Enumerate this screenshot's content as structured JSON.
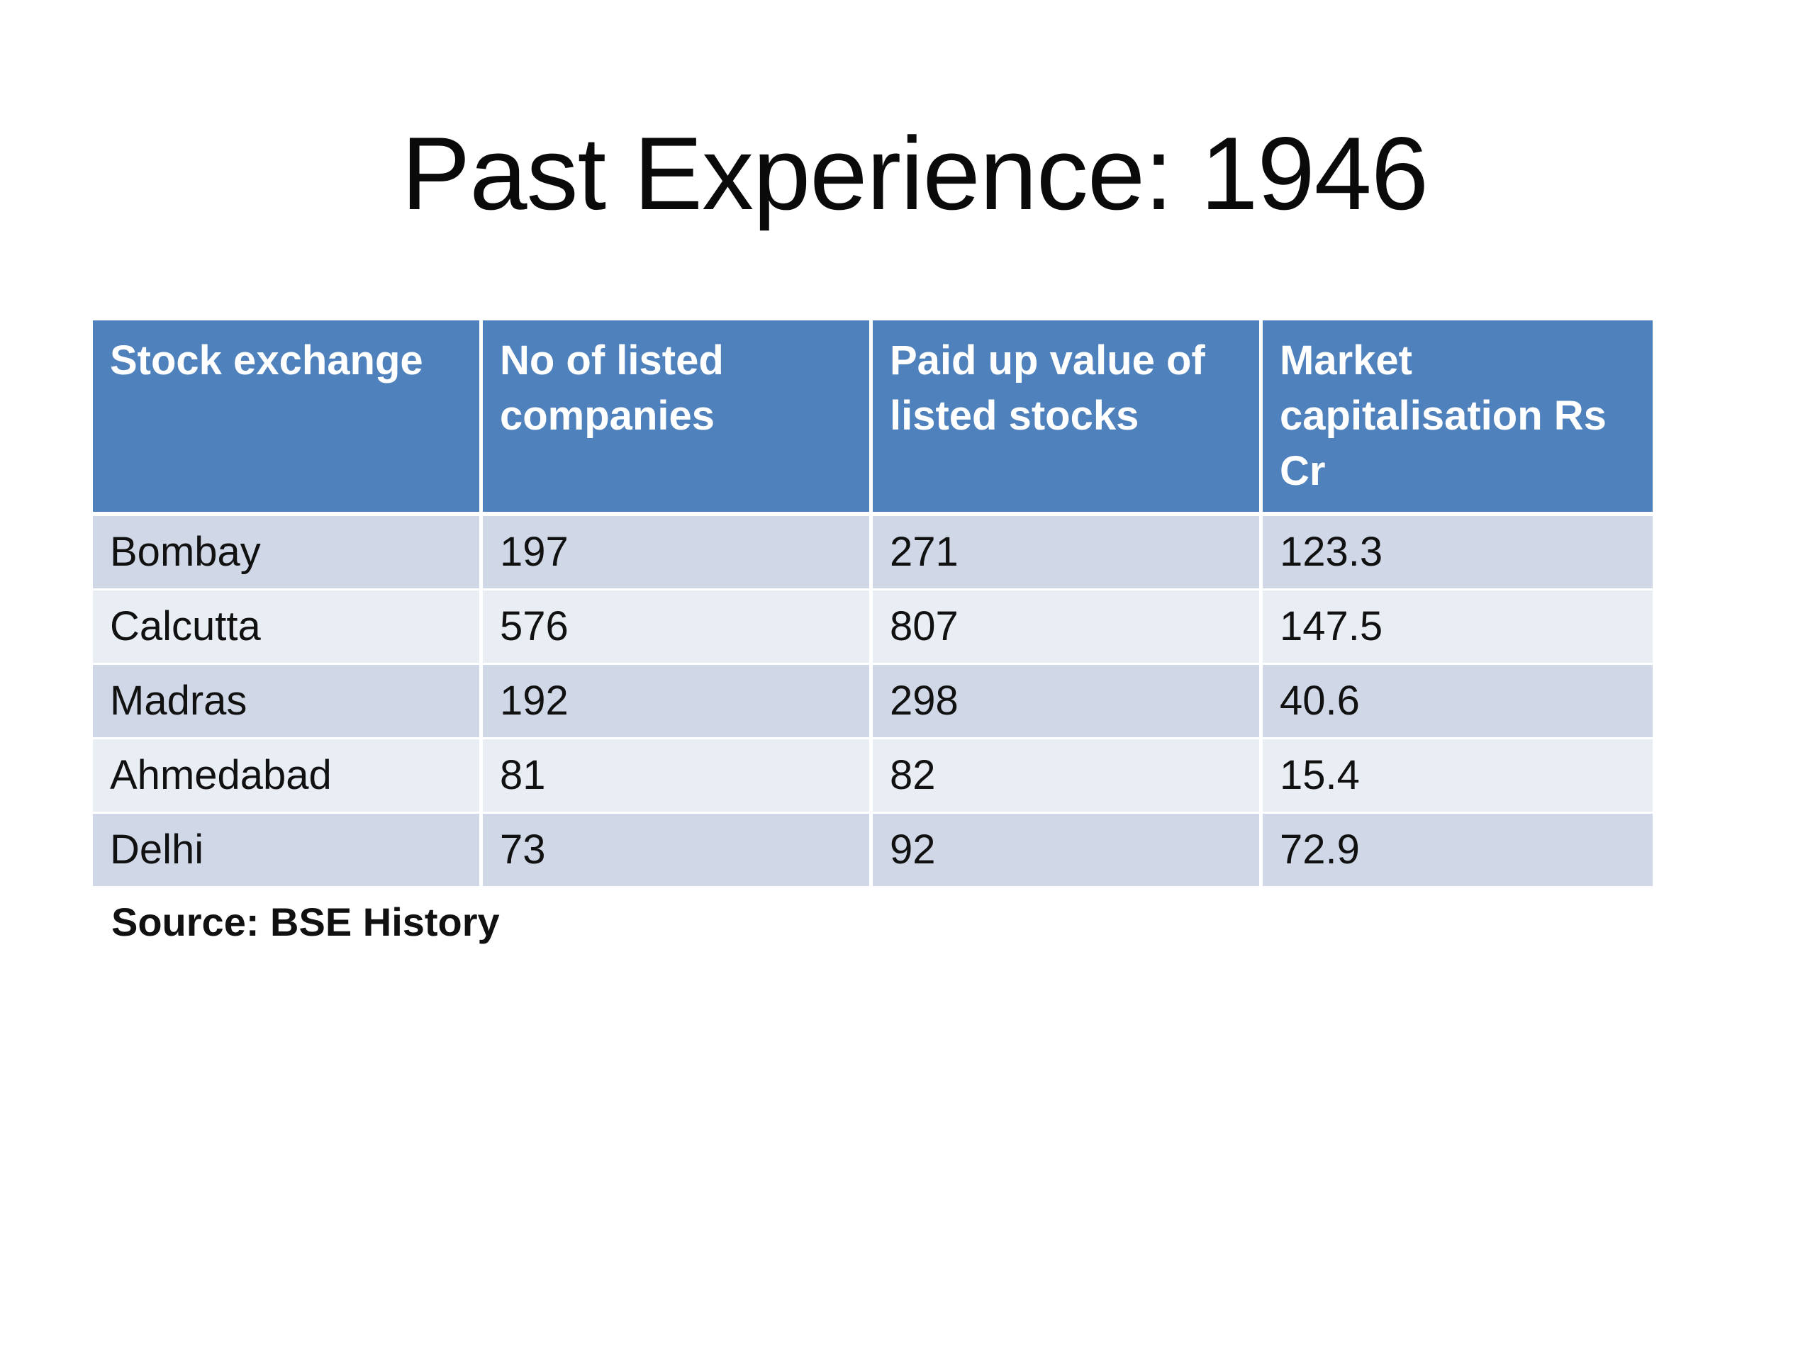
{
  "slide": {
    "title": "Past Experience: 1946",
    "source": "Source: BSE History"
  },
  "colors": {
    "header_bg": "#4f81bd",
    "row_dark": "#d0d8e8",
    "row_light": "#e9edf4"
  },
  "table": {
    "headers": [
      "Stock exchange",
      "No of listed companies",
      "Paid up value of listed stocks",
      "Market capitalisation Rs Cr"
    ],
    "rows": [
      [
        "Bombay",
        "197",
        "271",
        "123.3"
      ],
      [
        "Calcutta",
        "576",
        "807",
        "147.5"
      ],
      [
        "Madras",
        "192",
        "298",
        "40.6"
      ],
      [
        "Ahmedabad",
        "81",
        "82",
        "15.4"
      ],
      [
        "Delhi",
        "73",
        "92",
        "72.9"
      ]
    ]
  }
}
